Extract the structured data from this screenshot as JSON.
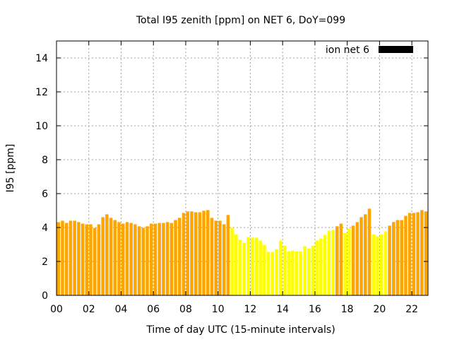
{
  "chart_data": {
    "type": "bar",
    "title": "Total I95 zenith [ppm] on NET 6, DoY=099",
    "xlabel": "Time of day UTC (15-minute intervals)",
    "ylabel": "I95 [ppm]",
    "xlim": [
      0,
      23
    ],
    "ylim": [
      0,
      15
    ],
    "grid": true,
    "x_tick_labels": [
      "00",
      "02",
      "04",
      "06",
      "08",
      "10",
      "12",
      "14",
      "16",
      "18",
      "20",
      "22"
    ],
    "x_tick_values": [
      0,
      2,
      4,
      6,
      8,
      10,
      12,
      14,
      16,
      18,
      20,
      22
    ],
    "y_tick_values": [
      0,
      2,
      4,
      6,
      8,
      10,
      12,
      14
    ],
    "y_tick_labels": [
      "0",
      "2",
      "4",
      "6",
      "8",
      "10",
      "12",
      "14"
    ],
    "legend": {
      "label": "ion net 6",
      "placement": "top-right",
      "color": "#000000"
    },
    "interval_hours": 0.25,
    "colors": {
      "high": "#FFA500",
      "low": "#FFFF00"
    },
    "values": [
      4.32,
      4.4,
      4.27,
      4.4,
      4.4,
      4.32,
      4.23,
      4.19,
      4.19,
      3.98,
      4.19,
      4.61,
      4.78,
      4.57,
      4.44,
      4.32,
      4.23,
      4.32,
      4.27,
      4.19,
      4.07,
      3.98,
      4.07,
      4.23,
      4.23,
      4.27,
      4.27,
      4.32,
      4.27,
      4.44,
      4.57,
      4.86,
      4.95,
      4.95,
      4.9,
      4.9,
      4.99,
      5.03,
      4.57,
      4.4,
      4.4,
      4.19,
      4.74,
      3.98,
      3.6,
      3.27,
      3.1,
      3.44,
      3.4,
      3.4,
      3.23,
      2.98,
      2.56,
      2.56,
      2.72,
      3.23,
      2.93,
      2.6,
      2.64,
      2.6,
      2.6,
      2.89,
      2.77,
      2.93,
      3.23,
      3.35,
      3.56,
      3.81,
      3.86,
      4.07,
      4.23,
      3.69,
      3.94,
      4.11,
      4.32,
      4.61,
      4.78,
      5.11,
      3.6,
      3.48,
      3.6,
      3.77,
      4.11,
      4.32,
      4.44,
      4.44,
      4.69,
      4.86,
      4.86,
      4.9,
      5.03,
      4.95
    ],
    "bar_class": [
      "high",
      "high",
      "high",
      "high",
      "high",
      "high",
      "high",
      "high",
      "high",
      "high",
      "high",
      "high",
      "high",
      "high",
      "high",
      "high",
      "high",
      "high",
      "high",
      "high",
      "high",
      "high",
      "high",
      "high",
      "high",
      "high",
      "high",
      "high",
      "high",
      "high",
      "high",
      "high",
      "high",
      "high",
      "high",
      "high",
      "high",
      "high",
      "high",
      "high",
      "high",
      "high",
      "high",
      "low",
      "low",
      "low",
      "low",
      "low",
      "low",
      "low",
      "low",
      "low",
      "low",
      "low",
      "low",
      "low",
      "low",
      "low",
      "low",
      "low",
      "low",
      "low",
      "low",
      "low",
      "low",
      "low",
      "low",
      "low",
      "low",
      "high",
      "high",
      "low",
      "low",
      "high",
      "high",
      "high",
      "high",
      "high",
      "low",
      "low",
      "low",
      "low",
      "high",
      "high",
      "high",
      "high",
      "high",
      "high",
      "high",
      "high",
      "high",
      "high"
    ]
  }
}
